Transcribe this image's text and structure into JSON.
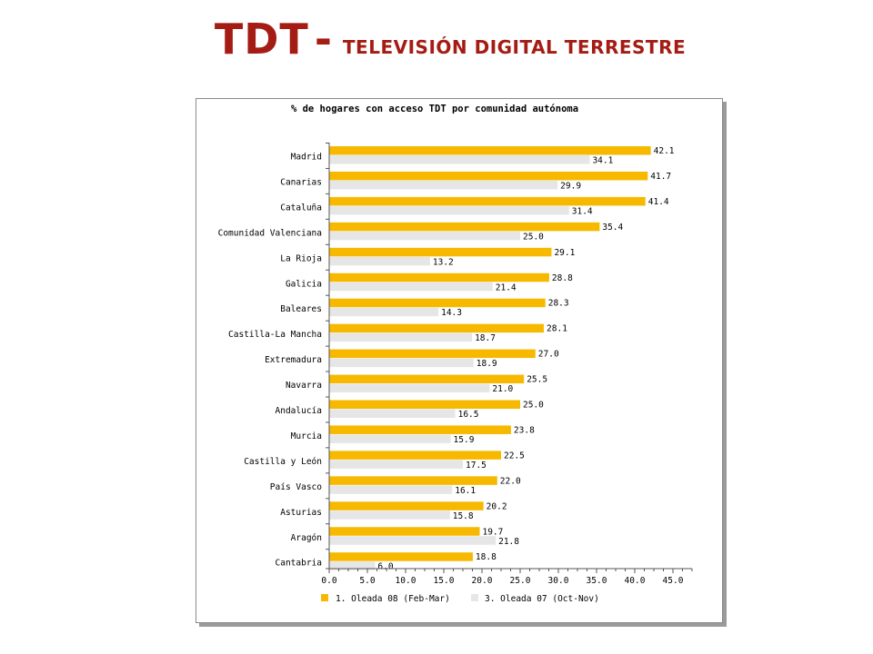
{
  "slide": {
    "title_main": "TDT",
    "title_separator": "-",
    "title_sub": "TELEVISIÓN DIGITAL TERRESTRE"
  },
  "colors": {
    "title": "#a41c14",
    "series_primary": "#f7b900",
    "series_secondary": "#e6e6e6"
  },
  "chart_data": {
    "type": "bar",
    "orientation": "horizontal",
    "title": "% de hogares con acceso TDT por comunidad autónoma",
    "xlabel": "",
    "ylabel": "",
    "xlim": [
      0,
      47.5
    ],
    "x_ticks": [
      "0.0",
      "5.0",
      "10.0",
      "15.0",
      "20.0",
      "25.0",
      "30.0",
      "35.0",
      "40.0",
      "45.0"
    ],
    "grid": false,
    "legend_position": "bottom",
    "categories": [
      "Madrid",
      "Canarias",
      "Cataluña",
      "Comunidad Valenciana",
      "La Rioja",
      "Galicia",
      "Baleares",
      "Castilla-La Mancha",
      "Extremadura",
      "Navarra",
      "Andalucía",
      "Murcia",
      "Castilla y León",
      "País Vasco",
      "Asturias",
      "Aragón",
      "Cantabria"
    ],
    "series": [
      {
        "name": "1. Oleada 08 (Feb-Mar)",
        "color": "#f7b900",
        "values": [
          42.1,
          41.7,
          41.4,
          35.4,
          29.1,
          28.8,
          28.3,
          28.1,
          27.0,
          25.5,
          25.0,
          23.8,
          22.5,
          22.0,
          20.2,
          19.7,
          18.8
        ]
      },
      {
        "name": "3. Oleada 07 (Oct-Nov)",
        "color": "#e6e6e6",
        "values": [
          34.1,
          29.9,
          31.4,
          25.0,
          13.2,
          21.4,
          14.3,
          18.7,
          18.9,
          21.0,
          16.5,
          15.9,
          17.5,
          16.1,
          15.8,
          21.8,
          6.0
        ]
      }
    ]
  }
}
